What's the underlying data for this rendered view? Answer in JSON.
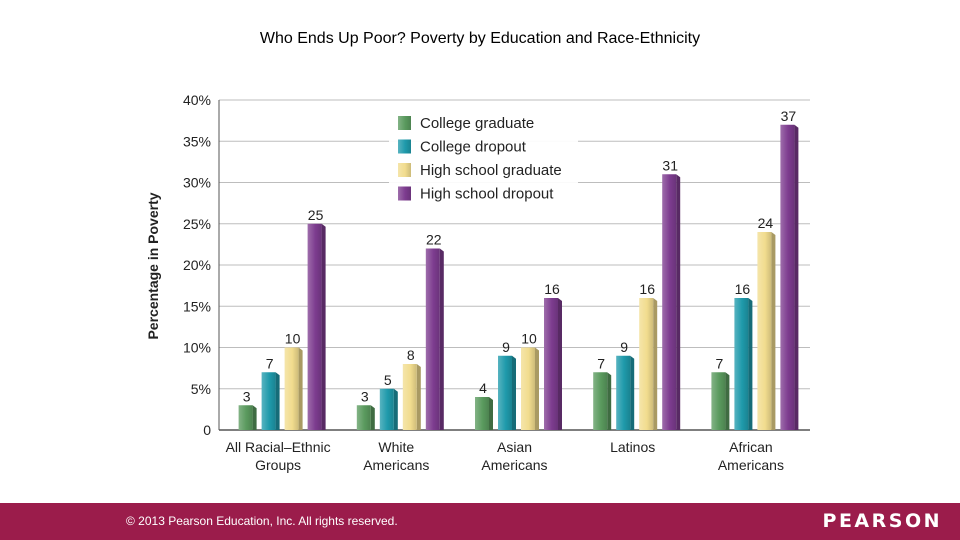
{
  "slide": {
    "title": "Who Ends Up Poor? Poverty by Education and Race-Ethnicity"
  },
  "footer": {
    "copyright": "© 2013 Pearson Education, Inc. All rights reserved.",
    "brand": "PEARSON",
    "bg_color": "#9b1c4b"
  },
  "chart_data": {
    "type": "bar",
    "title": "",
    "xlabel": "",
    "ylabel": "Percentage in Poverty",
    "ylim": [
      0,
      40
    ],
    "yticks": [
      0,
      5,
      10,
      15,
      20,
      25,
      30,
      35,
      40
    ],
    "ytick_labels": [
      "0",
      "5%",
      "10%",
      "15%",
      "20%",
      "25%",
      "30%",
      "35%",
      "40%"
    ],
    "grid": true,
    "legend_position": "top-center",
    "categories": [
      [
        "All Racial–Ethnic",
        "Groups"
      ],
      [
        "White",
        "Americans"
      ],
      [
        "Asian",
        "Americans"
      ],
      [
        "Latinos"
      ],
      [
        "African",
        "Americans"
      ]
    ],
    "series": [
      {
        "name": "College graduate",
        "color": "#5a9a5e",
        "values": [
          3,
          3,
          4,
          7,
          7
        ]
      },
      {
        "name": "College dropout",
        "color": "#1f9aab",
        "values": [
          7,
          5,
          9,
          9,
          16
        ]
      },
      {
        "name": "High school graduate",
        "color": "#f1dc8e",
        "values": [
          10,
          8,
          10,
          16,
          24
        ]
      },
      {
        "name": "High school dropout",
        "color": "#7d3c8f",
        "values": [
          25,
          22,
          16,
          31,
          37
        ]
      }
    ]
  }
}
